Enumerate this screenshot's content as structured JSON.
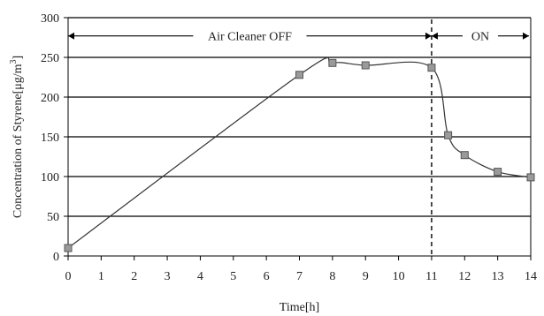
{
  "chart_data": {
    "type": "line",
    "title": "",
    "xlabel": "Time[h]",
    "ylabel_main": "Concentration of Styrene[μg/m",
    "ylabel_superscript": "3",
    "ylabel_close": "]",
    "xlim": [
      0,
      14
    ],
    "ylim": [
      0,
      300
    ],
    "x_ticks": [
      0,
      1,
      2,
      3,
      4,
      5,
      6,
      7,
      8,
      9,
      10,
      11,
      12,
      13,
      14
    ],
    "y_ticks": [
      0,
      50,
      100,
      150,
      200,
      250,
      300
    ],
    "grid": "horizontal",
    "series": [
      {
        "x": [
          0,
          7,
          8,
          9,
          11,
          11.5,
          12,
          13,
          14
        ],
        "y": [
          10,
          228,
          243,
          240,
          237,
          152,
          127,
          106,
          99
        ]
      }
    ],
    "annotations": {
      "off_label": "Air Cleaner OFF",
      "on_label": "ON",
      "off_range": [
        0,
        11
      ],
      "on_range": [
        11,
        14
      ],
      "divider_x": 11,
      "arrow_y": 277
    },
    "colors": {
      "line": "#333333",
      "marker_fill": "#9a9a9a",
      "marker_stroke": "#555555",
      "grid": "#000000"
    }
  }
}
